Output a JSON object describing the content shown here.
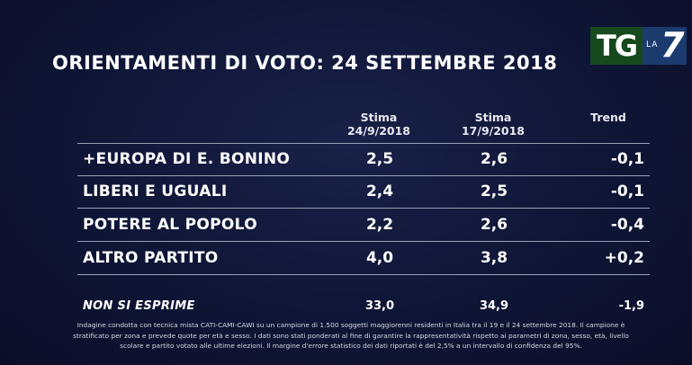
{
  "logo": {
    "tg": "TG",
    "la": "LA",
    "seven": "7"
  },
  "title": "ORIENTAMENTI DI VOTO: 24 SETTEMBRE 2018",
  "columns": {
    "col1": [
      "Stima",
      "24/9/2018"
    ],
    "col2": [
      "Stima",
      "17/9/2018"
    ],
    "col3": "Trend"
  },
  "rows": [
    {
      "label": "+EUROPA DI E. BONINO",
      "stima_24": "2,5",
      "stima_17": "2,6",
      "trend": "-0,1"
    },
    {
      "label": "LIBERI E UGUALI",
      "stima_24": "2,4",
      "stima_17": "2,5",
      "trend": "-0,1"
    },
    {
      "label": "POTERE AL POPOLO",
      "stima_24": "2,2",
      "stima_17": "2,6",
      "trend": "-0,4"
    },
    {
      "label": "ALTRO PARTITO",
      "stima_24": "4,0",
      "stima_17": "3,8",
      "trend": "+0,2"
    }
  ],
  "non_si_esprime": {
    "label": "NON SI ESPRIME",
    "stima_24": "33,0",
    "stima_17": "34,9",
    "trend": "-1,9"
  },
  "footnote": [
    "Indagine condotta con tecnica mista CATI-CAMI-CAWI su un campione di 1.500 soggetti maggiorenni residenti in Italia tra il 19 e il 24 settembre 2018. Il campione è",
    "stratificato per zona e prevede quote per età e sesso. I dati sono stati ponderati al fine di garantire la rappresentatività rispetto ai parametri di zona, sesso, età, livello",
    "scolare e partito votato alle ultime elezioni. Il margine d'errore statistico dei dati riportati è del 2,5% a un intervallo di confidenza del 95%."
  ],
  "colors": {
    "background": "#0f1536",
    "tg_green": "#17491f",
    "la7_blue": "#1b3a6e",
    "rule": "#9aa0b5"
  }
}
